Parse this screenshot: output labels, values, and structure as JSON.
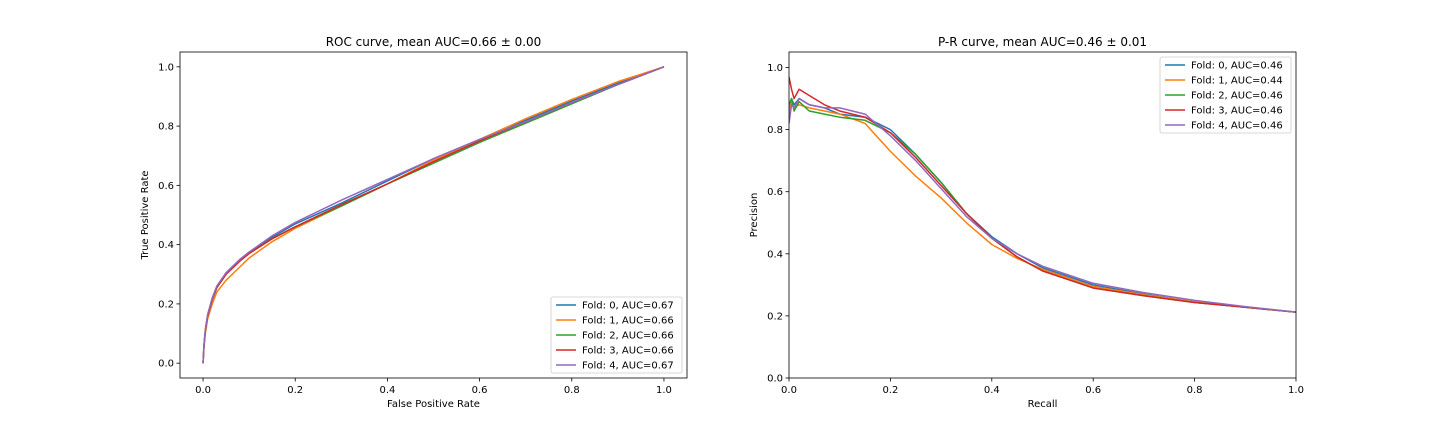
{
  "chart_data": [
    {
      "type": "line",
      "title": "ROC curve, mean AUC=0.66 ± 0.00",
      "xlabel": "False Positive Rate",
      "ylabel": "True Positive Rate",
      "xlim": [
        -0.05,
        1.05
      ],
      "ylim": [
        -0.05,
        1.05
      ],
      "xticks": [
        "0.0",
        "0.2",
        "0.4",
        "0.6",
        "0.8",
        "1.0"
      ],
      "yticks": [
        "0.0",
        "0.2",
        "0.4",
        "0.6",
        "0.8",
        "1.0"
      ],
      "grid": false,
      "legend_position": "lower-right",
      "series": [
        {
          "name": "Fold: 0, AUC=0.67",
          "color": "#1f77b4",
          "x": [
            0,
            0.002,
            0.005,
            0.01,
            0.02,
            0.03,
            0.05,
            0.08,
            0.1,
            0.15,
            0.2,
            0.3,
            0.4,
            0.5,
            0.6,
            0.7,
            0.8,
            0.9,
            1.0
          ],
          "y": [
            0,
            0.06,
            0.11,
            0.16,
            0.22,
            0.26,
            0.305,
            0.35,
            0.375,
            0.425,
            0.47,
            0.54,
            0.615,
            0.69,
            0.755,
            0.82,
            0.885,
            0.945,
            1.0
          ]
        },
        {
          "name": "Fold: 1, AUC=0.66",
          "color": "#ff7f0e",
          "x": [
            0,
            0.002,
            0.005,
            0.01,
            0.02,
            0.03,
            0.05,
            0.08,
            0.1,
            0.15,
            0.2,
            0.3,
            0.4,
            0.5,
            0.6,
            0.7,
            0.8,
            0.9,
            1.0
          ],
          "y": [
            0,
            0.05,
            0.1,
            0.15,
            0.2,
            0.24,
            0.28,
            0.325,
            0.355,
            0.41,
            0.455,
            0.53,
            0.605,
            0.685,
            0.755,
            0.825,
            0.89,
            0.95,
            1.0
          ]
        },
        {
          "name": "Fold: 2, AUC=0.66",
          "color": "#2ca02c",
          "x": [
            0,
            0.002,
            0.005,
            0.01,
            0.02,
            0.03,
            0.05,
            0.08,
            0.1,
            0.15,
            0.2,
            0.3,
            0.4,
            0.5,
            0.6,
            0.7,
            0.8,
            0.9,
            1.0
          ],
          "y": [
            0,
            0.06,
            0.11,
            0.16,
            0.215,
            0.255,
            0.3,
            0.345,
            0.37,
            0.42,
            0.46,
            0.53,
            0.605,
            0.675,
            0.745,
            0.81,
            0.875,
            0.94,
            1.0
          ]
        },
        {
          "name": "Fold: 3, AUC=0.66",
          "color": "#d62728",
          "x": [
            0,
            0.002,
            0.005,
            0.01,
            0.02,
            0.03,
            0.05,
            0.08,
            0.1,
            0.15,
            0.2,
            0.3,
            0.4,
            0.5,
            0.6,
            0.7,
            0.8,
            0.9,
            1.0
          ],
          "y": [
            0,
            0.06,
            0.11,
            0.16,
            0.215,
            0.255,
            0.3,
            0.345,
            0.37,
            0.42,
            0.46,
            0.535,
            0.605,
            0.68,
            0.75,
            0.815,
            0.88,
            0.94,
            1.0
          ]
        },
        {
          "name": "Fold: 4, AUC=0.67",
          "color": "#9467bd",
          "x": [
            0,
            0.002,
            0.005,
            0.01,
            0.02,
            0.03,
            0.05,
            0.08,
            0.1,
            0.15,
            0.2,
            0.3,
            0.4,
            0.5,
            0.6,
            0.7,
            0.8,
            0.9,
            1.0
          ],
          "y": [
            0,
            0.06,
            0.115,
            0.165,
            0.22,
            0.26,
            0.305,
            0.35,
            0.375,
            0.43,
            0.475,
            0.55,
            0.62,
            0.69,
            0.755,
            0.815,
            0.88,
            0.94,
            1.0
          ]
        }
      ]
    },
    {
      "type": "line",
      "title": "P-R curve, mean AUC=0.46 ± 0.01",
      "xlabel": "Recall",
      "ylabel": "Precision",
      "xlim": [
        0.0,
        1.0
      ],
      "ylim": [
        0.0,
        1.05
      ],
      "xticks": [
        "0.0",
        "0.2",
        "0.4",
        "0.6",
        "0.8",
        "1.0"
      ],
      "yticks": [
        "0.0",
        "0.2",
        "0.4",
        "0.6",
        "0.8",
        "1.0"
      ],
      "grid": false,
      "legend_position": "upper-right",
      "series": [
        {
          "name": "Fold: 0, AUC=0.46",
          "color": "#1f77b4",
          "x": [
            0,
            0.005,
            0.01,
            0.02,
            0.04,
            0.07,
            0.1,
            0.15,
            0.2,
            0.25,
            0.3,
            0.35,
            0.4,
            0.45,
            0.5,
            0.6,
            0.7,
            0.8,
            0.9,
            1.0
          ],
          "y": [
            0.85,
            0.9,
            0.88,
            0.9,
            0.88,
            0.87,
            0.85,
            0.84,
            0.8,
            0.72,
            0.63,
            0.53,
            0.455,
            0.4,
            0.355,
            0.3,
            0.27,
            0.245,
            0.228,
            0.212
          ]
        },
        {
          "name": "Fold: 1, AUC=0.44",
          "color": "#ff7f0e",
          "x": [
            0,
            0.005,
            0.01,
            0.02,
            0.04,
            0.07,
            0.1,
            0.15,
            0.2,
            0.25,
            0.3,
            0.35,
            0.4,
            0.45,
            0.5,
            0.6,
            0.7,
            0.8,
            0.9,
            1.0
          ],
          "y": [
            0.85,
            0.89,
            0.87,
            0.88,
            0.87,
            0.86,
            0.85,
            0.82,
            0.73,
            0.65,
            0.58,
            0.5,
            0.43,
            0.385,
            0.35,
            0.295,
            0.268,
            0.245,
            0.228,
            0.212
          ]
        },
        {
          "name": "Fold: 2, AUC=0.46",
          "color": "#2ca02c",
          "x": [
            0,
            0.005,
            0.01,
            0.02,
            0.04,
            0.07,
            0.1,
            0.15,
            0.2,
            0.25,
            0.3,
            0.35,
            0.4,
            0.45,
            0.5,
            0.6,
            0.7,
            0.8,
            0.9,
            1.0
          ],
          "y": [
            0.88,
            0.9,
            0.86,
            0.89,
            0.86,
            0.85,
            0.84,
            0.83,
            0.79,
            0.72,
            0.63,
            0.53,
            0.45,
            0.39,
            0.345,
            0.29,
            0.265,
            0.243,
            0.228,
            0.212
          ]
        },
        {
          "name": "Fold: 3, AUC=0.46",
          "color": "#d62728",
          "x": [
            0,
            0.005,
            0.01,
            0.02,
            0.04,
            0.07,
            0.1,
            0.15,
            0.2,
            0.25,
            0.3,
            0.35,
            0.4,
            0.45,
            0.5,
            0.6,
            0.7,
            0.8,
            0.9,
            1.0
          ],
          "y": [
            0.97,
            0.93,
            0.9,
            0.93,
            0.91,
            0.88,
            0.86,
            0.84,
            0.79,
            0.71,
            0.62,
            0.53,
            0.45,
            0.39,
            0.345,
            0.29,
            0.265,
            0.243,
            0.228,
            0.212
          ]
        },
        {
          "name": "Fold: 4, AUC=0.46",
          "color": "#9467bd",
          "x": [
            0,
            0.005,
            0.01,
            0.02,
            0.04,
            0.07,
            0.1,
            0.15,
            0.2,
            0.25,
            0.3,
            0.35,
            0.4,
            0.45,
            0.5,
            0.6,
            0.7,
            0.8,
            0.9,
            1.0
          ],
          "y": [
            0.82,
            0.88,
            0.87,
            0.9,
            0.88,
            0.87,
            0.87,
            0.85,
            0.78,
            0.7,
            0.61,
            0.52,
            0.45,
            0.4,
            0.36,
            0.305,
            0.275,
            0.25,
            0.23,
            0.212
          ]
        }
      ]
    }
  ]
}
